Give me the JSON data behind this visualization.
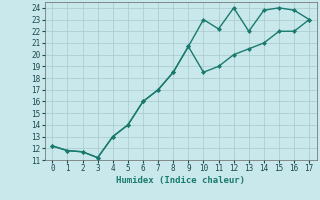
{
  "line1_x": [
    0,
    1,
    2,
    3,
    4,
    5,
    6,
    7,
    8,
    9,
    10,
    11,
    12,
    13,
    14,
    15,
    16,
    17
  ],
  "line1_y": [
    12.2,
    11.8,
    11.7,
    11.2,
    13.0,
    14.0,
    16.0,
    17.0,
    18.5,
    20.7,
    23.0,
    22.2,
    24.0,
    22.0,
    23.8,
    24.0,
    23.8,
    23.0
  ],
  "line2_x": [
    0,
    1,
    2,
    3,
    4,
    5,
    6,
    7,
    8,
    9,
    10,
    11,
    12,
    13,
    14,
    15,
    16,
    17
  ],
  "line2_y": [
    12.2,
    11.8,
    11.7,
    11.2,
    13.0,
    14.0,
    16.0,
    17.0,
    18.5,
    20.7,
    18.5,
    19.0,
    20.0,
    20.5,
    21.0,
    22.0,
    22.0,
    23.0
  ],
  "line_color": "#1a7a6e",
  "bg_color": "#c8e8ec",
  "grid_color": "#a8c8cc",
  "xlabel": "Humidex (Indice chaleur)",
  "xlim": [
    -0.5,
    17.5
  ],
  "ylim": [
    11,
    24.5
  ],
  "xticks": [
    0,
    1,
    2,
    3,
    4,
    5,
    6,
    7,
    8,
    9,
    10,
    11,
    12,
    13,
    14,
    15,
    16,
    17
  ],
  "yticks": [
    11,
    12,
    13,
    14,
    15,
    16,
    17,
    18,
    19,
    20,
    21,
    22,
    23,
    24
  ],
  "marker_size": 2.5,
  "linewidth": 1.0
}
